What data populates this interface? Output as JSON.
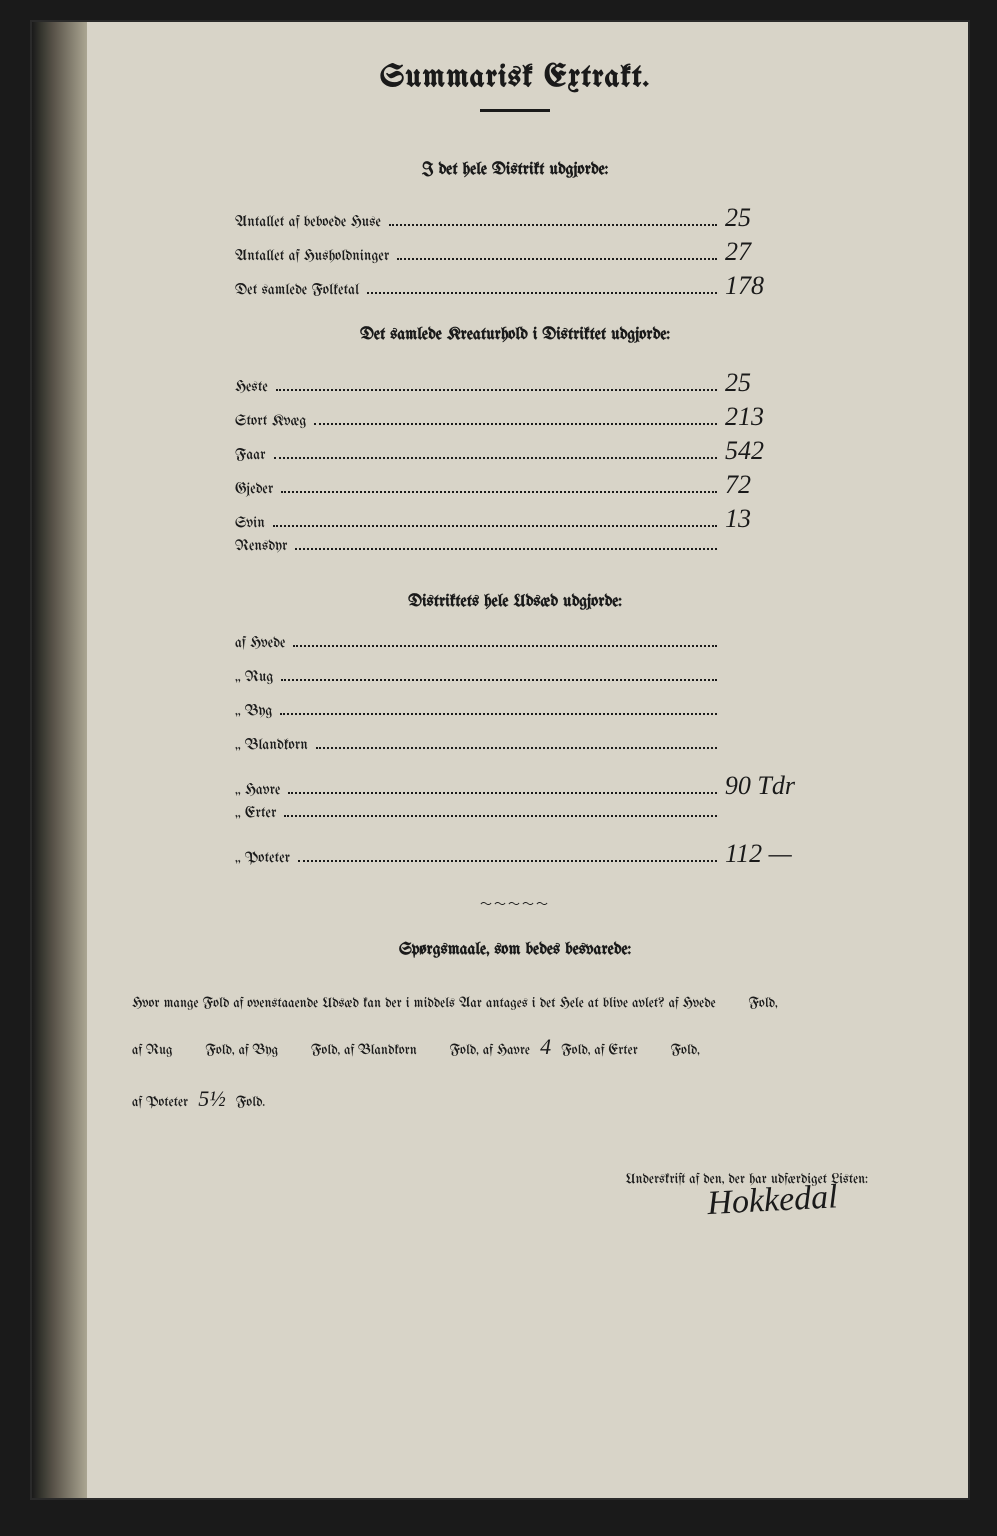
{
  "title": "Summarisk Extrakt.",
  "section1": {
    "heading": "I det hele Distrikt udgjorde:",
    "rows": [
      {
        "label": "Antallet af beboede Huse",
        "value": "25"
      },
      {
        "label": "Antallet af Husholdninger",
        "value": "27"
      },
      {
        "label": "Det samlede Folketal",
        "value": "178"
      }
    ]
  },
  "section2": {
    "heading": "Det samlede Kreaturhold i Distriktet udgjorde:",
    "rows": [
      {
        "label": "Heste",
        "value": "25"
      },
      {
        "label": "Stort Kvæg",
        "value": "213"
      },
      {
        "label": "Faar",
        "value": "542"
      },
      {
        "label": "Gjeder",
        "value": "72"
      },
      {
        "label": "Svin",
        "value": "13"
      },
      {
        "label": "Rensdyr",
        "value": ""
      }
    ]
  },
  "section3": {
    "heading": "Distriktets hele Udsæd udgjorde:",
    "rows": [
      {
        "label": "af Hvede",
        "value": ""
      },
      {
        "label": "„ Rug",
        "value": ""
      },
      {
        "label": "„ Byg",
        "value": ""
      },
      {
        "label": "„ Blandkorn",
        "value": ""
      },
      {
        "label": "„ Havre",
        "value": "90 Tdr"
      },
      {
        "label": "„ Erter",
        "value": ""
      },
      {
        "label": "„ Poteter",
        "value": "112  —"
      }
    ]
  },
  "questions": {
    "heading": "Spørgsmaale, som bedes besvarede:",
    "line1_a": "Hvor mange Fold af ovenstaaende Udsæd kan der i middels Aar antages i det Hele at blive avlet?  af Hvede",
    "line1_b": "Fold,",
    "line2_a": "af Rug",
    "line2_b": "Fold, af Byg",
    "line2_c": "Fold, af Blandkorn",
    "line2_d": "Fold, af Havre",
    "havre_fold": "4",
    "line2_e": "Fold, af Erter",
    "line2_f": "Fold,",
    "line3_a": "af Poteter",
    "poteter_fold": "5½",
    "line3_b": "Fold."
  },
  "signature_label": "Underskrift af den, der har udfærdiget Listen:",
  "signature": "Hokkedal",
  "colors": {
    "paper": "#d8d4c8",
    "ink": "#1a1a1a",
    "frame": "#1a1a1a"
  }
}
